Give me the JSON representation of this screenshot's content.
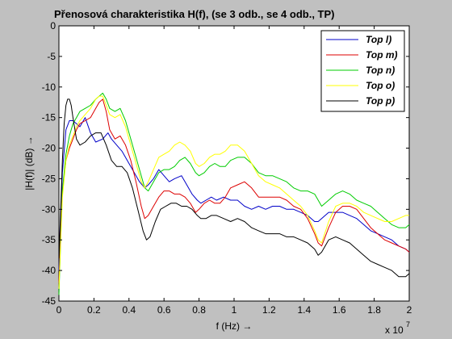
{
  "chart_data": {
    "type": "line",
    "title": "Přenosová charakteristika H(f), (se 3 odb., se 4 odb., TP)",
    "xlabel": "f (Hz) →",
    "ylabel": "|H(f)| (dB) →",
    "x_multiplier_label": "x 10",
    "x_multiplier_exponent": "7",
    "xlim": [
      0,
      2
    ],
    "ylim": [
      -45,
      0
    ],
    "xticks": [
      "0",
      "0.2",
      "0.4",
      "0.6",
      "0.8",
      "1",
      "1.2",
      "1.4",
      "1.6",
      "1.8",
      "2"
    ],
    "yticks": [
      "0",
      "-5",
      "-10",
      "-15",
      "-20",
      "-25",
      "-30",
      "-35",
      "-40",
      "-45"
    ],
    "xtick_values": [
      0,
      0.2,
      0.4,
      0.6,
      0.8,
      1.0,
      1.2,
      1.4,
      1.6,
      1.8,
      2.0
    ],
    "ytick_values": [
      0,
      -5,
      -10,
      -15,
      -20,
      -25,
      -30,
      -35,
      -40,
      -45
    ],
    "grid": false,
    "legend_position": "top-right",
    "series": [
      {
        "name": "Top l)",
        "color": "#0000c8",
        "x": [
          0,
          0.01,
          0.02,
          0.04,
          0.06,
          0.08,
          0.1,
          0.12,
          0.15,
          0.18,
          0.21,
          0.25,
          0.28,
          0.3,
          0.33,
          0.36,
          0.4,
          0.43,
          0.46,
          0.49,
          0.51,
          0.54,
          0.57,
          0.6,
          0.63,
          0.66,
          0.7,
          0.73,
          0.76,
          0.79,
          0.81,
          0.84,
          0.87,
          0.9,
          0.94,
          0.98,
          1.02,
          1.06,
          1.1,
          1.14,
          1.18,
          1.22,
          1.26,
          1.3,
          1.34,
          1.38,
          1.42,
          1.46,
          1.48,
          1.5,
          1.54,
          1.58,
          1.62,
          1.66,
          1.7,
          1.74,
          1.78,
          1.82,
          1.86,
          1.9,
          1.94,
          1.98,
          2.0
        ],
        "y": [
          -40,
          -32,
          -24,
          -17,
          -15.5,
          -15.5,
          -16,
          -16.5,
          -15,
          -17.5,
          -19,
          -18.5,
          -17.5,
          -18.5,
          -19.5,
          -20.5,
          -22.5,
          -24,
          -25.5,
          -26.5,
          -26,
          -25,
          -23.5,
          -24.5,
          -25.5,
          -25,
          -24.5,
          -26,
          -27.5,
          -28.5,
          -29,
          -28.5,
          -28,
          -28.5,
          -28,
          -28.5,
          -28.5,
          -29.5,
          -30,
          -29.5,
          -30,
          -29.5,
          -29.5,
          -30,
          -30,
          -30.5,
          -31,
          -32,
          -32,
          -31.5,
          -30.5,
          -30.5,
          -30.5,
          -31,
          -31.5,
          -32.5,
          -33.5,
          -34,
          -34.5,
          -35,
          -36,
          -36.5,
          -37
        ]
      },
      {
        "name": "Top m)",
        "color": "#dd0000",
        "x": [
          0,
          0.01,
          0.02,
          0.04,
          0.06,
          0.08,
          0.1,
          0.12,
          0.15,
          0.18,
          0.21,
          0.23,
          0.25,
          0.27,
          0.29,
          0.32,
          0.35,
          0.38,
          0.41,
          0.44,
          0.47,
          0.49,
          0.51,
          0.54,
          0.57,
          0.6,
          0.63,
          0.66,
          0.69,
          0.72,
          0.75,
          0.78,
          0.8,
          0.83,
          0.86,
          0.89,
          0.92,
          0.95,
          0.98,
          1.02,
          1.06,
          1.1,
          1.14,
          1.18,
          1.22,
          1.26,
          1.3,
          1.34,
          1.38,
          1.42,
          1.46,
          1.48,
          1.5,
          1.54,
          1.58,
          1.62,
          1.66,
          1.7,
          1.74,
          1.78,
          1.82,
          1.86,
          1.9,
          1.94,
          1.98,
          2.0
        ],
        "y": [
          -42,
          -34,
          -27,
          -22,
          -20,
          -18.5,
          -17,
          -16,
          -15.5,
          -15,
          -13.5,
          -12.5,
          -12,
          -14,
          -17,
          -18.5,
          -18,
          -19.5,
          -22,
          -25.5,
          -29.5,
          -31.5,
          -31,
          -29.5,
          -28,
          -27,
          -27,
          -27.5,
          -27.5,
          -28,
          -29,
          -30.5,
          -30,
          -29,
          -28.5,
          -29,
          -29,
          -28,
          -26.5,
          -26,
          -25.5,
          -26.5,
          -28,
          -28,
          -28,
          -28,
          -28.5,
          -29.5,
          -30,
          -31.5,
          -34,
          -35.5,
          -36,
          -33,
          -30.5,
          -29.5,
          -29.5,
          -30,
          -31.5,
          -33,
          -34,
          -35,
          -35.5,
          -36,
          -36.5,
          -37
        ]
      },
      {
        "name": "Top n)",
        "color": "#00cc00",
        "x": [
          0,
          0.01,
          0.02,
          0.04,
          0.06,
          0.08,
          0.1,
          0.12,
          0.15,
          0.18,
          0.21,
          0.23,
          0.25,
          0.27,
          0.29,
          0.32,
          0.35,
          0.38,
          0.41,
          0.44,
          0.47,
          0.49,
          0.51,
          0.54,
          0.57,
          0.6,
          0.63,
          0.66,
          0.69,
          0.72,
          0.75,
          0.78,
          0.8,
          0.83,
          0.86,
          0.89,
          0.92,
          0.95,
          0.98,
          1.02,
          1.06,
          1.1,
          1.14,
          1.18,
          1.22,
          1.26,
          1.3,
          1.34,
          1.38,
          1.42,
          1.46,
          1.48,
          1.5,
          1.54,
          1.58,
          1.62,
          1.66,
          1.7,
          1.74,
          1.78,
          1.82,
          1.86,
          1.9,
          1.94,
          1.98,
          2.0
        ],
        "y": [
          -44,
          -35,
          -27,
          -21,
          -18,
          -16,
          -15,
          -14,
          -13.5,
          -13,
          -12,
          -11.5,
          -11,
          -12,
          -13.5,
          -14,
          -13.5,
          -15.5,
          -18.5,
          -21.5,
          -24.5,
          -26.5,
          -27,
          -25.5,
          -24,
          -23.5,
          -23.5,
          -23,
          -22,
          -21.5,
          -22.5,
          -24,
          -24.5,
          -24,
          -23,
          -22.5,
          -23,
          -23,
          -22,
          -21.5,
          -21.5,
          -22.5,
          -24,
          -24.5,
          -24.5,
          -25,
          -25.5,
          -26.5,
          -27,
          -27,
          -27.5,
          -28.5,
          -29.5,
          -28.5,
          -27.5,
          -27,
          -27.5,
          -28.5,
          -29,
          -29.5,
          -30.5,
          -31.5,
          -32.5,
          -33,
          -33,
          -32.5
        ]
      },
      {
        "name": "Top o)",
        "color": "#ffff00",
        "x": [
          0,
          0.01,
          0.02,
          0.04,
          0.06,
          0.08,
          0.1,
          0.12,
          0.15,
          0.18,
          0.21,
          0.23,
          0.25,
          0.27,
          0.29,
          0.32,
          0.35,
          0.38,
          0.41,
          0.44,
          0.47,
          0.49,
          0.51,
          0.54,
          0.57,
          0.6,
          0.63,
          0.66,
          0.69,
          0.72,
          0.75,
          0.78,
          0.8,
          0.83,
          0.86,
          0.89,
          0.92,
          0.95,
          0.98,
          1.02,
          1.06,
          1.1,
          1.14,
          1.18,
          1.22,
          1.26,
          1.3,
          1.34,
          1.38,
          1.42,
          1.46,
          1.48,
          1.5,
          1.54,
          1.58,
          1.62,
          1.66,
          1.7,
          1.74,
          1.78,
          1.82,
          1.86,
          1.9,
          1.94,
          1.98,
          2.0
        ],
        "y": [
          -43,
          -35,
          -28,
          -22,
          -19.5,
          -18,
          -16.5,
          -15.5,
          -14.5,
          -13.5,
          -12,
          -11.5,
          -11.5,
          -13,
          -14.5,
          -15,
          -14.5,
          -16.5,
          -19.5,
          -22.5,
          -25.5,
          -26.5,
          -25.5,
          -23.5,
          -21.5,
          -21,
          -20.5,
          -19.5,
          -19,
          -19.5,
          -20.5,
          -22.5,
          -23,
          -22.5,
          -21.5,
          -21,
          -21,
          -20.5,
          -19.5,
          -19.5,
          -20.5,
          -22.5,
          -24.5,
          -25.5,
          -26,
          -26.5,
          -27.5,
          -28.5,
          -29.5,
          -31,
          -33.5,
          -35,
          -35.5,
          -32,
          -29.5,
          -29,
          -29,
          -29.5,
          -30.5,
          -31,
          -31.5,
          -32,
          -32,
          -31.5,
          -31,
          -31
        ]
      },
      {
        "name": "Top p)",
        "color": "#000000",
        "x": [
          0,
          0.01,
          0.02,
          0.03,
          0.04,
          0.05,
          0.06,
          0.07,
          0.08,
          0.1,
          0.12,
          0.15,
          0.18,
          0.21,
          0.24,
          0.27,
          0.3,
          0.33,
          0.36,
          0.39,
          0.42,
          0.45,
          0.48,
          0.5,
          0.52,
          0.55,
          0.58,
          0.61,
          0.64,
          0.67,
          0.7,
          0.73,
          0.76,
          0.79,
          0.81,
          0.84,
          0.87,
          0.9,
          0.94,
          0.98,
          1.02,
          1.06,
          1.1,
          1.14,
          1.18,
          1.22,
          1.26,
          1.3,
          1.34,
          1.38,
          1.42,
          1.46,
          1.48,
          1.5,
          1.54,
          1.58,
          1.62,
          1.66,
          1.7,
          1.74,
          1.78,
          1.82,
          1.86,
          1.9,
          1.94,
          1.98,
          2.0
        ],
        "y": [
          -38,
          -30,
          -22,
          -16,
          -13,
          -12,
          -12,
          -13,
          -15,
          -18.5,
          -19.5,
          -19,
          -18,
          -17.5,
          -17.5,
          -19.5,
          -22,
          -23,
          -23,
          -24,
          -26.5,
          -30,
          -33.5,
          -35,
          -34.5,
          -32,
          -30,
          -29.5,
          -29,
          -29,
          -29.5,
          -29.5,
          -30,
          -31,
          -31.5,
          -31.5,
          -31,
          -31,
          -31.5,
          -32,
          -31.5,
          -32,
          -33,
          -33.5,
          -34,
          -34,
          -34,
          -34.5,
          -34.5,
          -35,
          -35.5,
          -36.5,
          -37.5,
          -37,
          -35,
          -34.5,
          -35,
          -35.5,
          -36.5,
          -37.5,
          -38.5,
          -39,
          -39.5,
          -40,
          -41,
          -41,
          -40.5
        ]
      }
    ]
  }
}
